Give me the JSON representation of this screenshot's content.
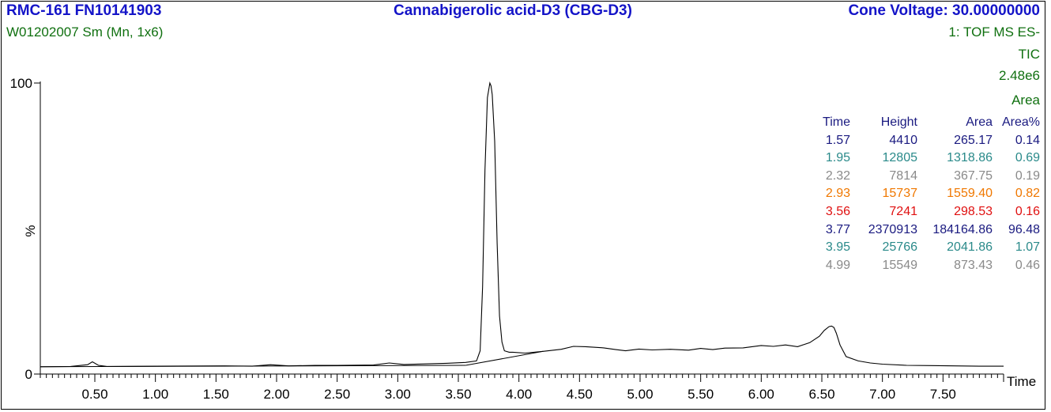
{
  "header": {
    "title_left": "RMC-161 FN10141903",
    "title_center": "Cannabigerolic acid-D3 (CBG-D3)",
    "title_right": "Cone Voltage: 30.00000000",
    "subtitle": "W01202007 Sm (Mn, 1x6)",
    "info_lines": [
      "1: TOF MS ES-",
      "TIC",
      "2.48e6",
      "Area"
    ]
  },
  "colors": {
    "title": "#1414c8",
    "info": "#107010",
    "trace": "#000000"
  },
  "peak_table": {
    "columns": [
      "Time",
      "Height",
      "Area",
      "Area%"
    ],
    "rows": [
      {
        "time": "1.57",
        "height": "4410",
        "area": "265.17",
        "pct": "0.14",
        "color": "#1a1a80"
      },
      {
        "time": "1.95",
        "height": "12805",
        "area": "1318.86",
        "pct": "0.69",
        "color": "#2a8a8a"
      },
      {
        "time": "2.32",
        "height": "7814",
        "area": "367.75",
        "pct": "0.19",
        "color": "#8a8a8a"
      },
      {
        "time": "2.93",
        "height": "15737",
        "area": "1559.40",
        "pct": "0.82",
        "color": "#f07800"
      },
      {
        "time": "3.56",
        "height": "7241",
        "area": "298.53",
        "pct": "0.16",
        "color": "#e01010"
      },
      {
        "time": "3.77",
        "height": "2370913",
        "area": "184164.86",
        "pct": "96.48",
        "color": "#1a1a80"
      },
      {
        "time": "3.95",
        "height": "25766",
        "area": "2041.86",
        "pct": "1.07",
        "color": "#2a8a8a"
      },
      {
        "time": "4.99",
        "height": "15549",
        "area": "873.43",
        "pct": "0.46",
        "color": "#8a8a8a"
      }
    ]
  },
  "chart_data": {
    "type": "line",
    "xlabel": "Time",
    "ylabel": "%",
    "xlim": [
      0.05,
      8.0
    ],
    "ylim": [
      0,
      100
    ],
    "x_ticks": [
      "0.50",
      "1.00",
      "1.50",
      "2.00",
      "2.50",
      "3.00",
      "3.50",
      "4.00",
      "4.50",
      "5.00",
      "5.50",
      "6.00",
      "6.50",
      "7.00",
      "7.50"
    ],
    "y_ticks": [
      "0",
      "100"
    ],
    "series": [
      {
        "x": [
          0.05,
          0.3,
          0.44,
          0.48,
          0.53,
          0.6,
          1.0,
          1.57,
          1.8,
          1.95,
          2.1,
          2.32,
          2.5,
          2.8,
          2.93,
          3.05,
          3.4,
          3.56,
          3.65,
          3.68,
          3.7,
          3.72,
          3.74,
          3.76,
          3.77,
          3.78,
          3.8,
          3.82,
          3.84,
          3.86,
          3.88,
          3.92,
          3.95,
          4.05,
          4.2,
          4.35,
          4.45,
          4.55,
          4.7,
          4.8,
          4.88,
          4.99,
          5.1,
          5.25,
          5.4,
          5.5,
          5.6,
          5.7,
          5.85,
          6.0,
          6.1,
          6.2,
          6.3,
          6.4,
          6.48,
          6.52,
          6.56,
          6.58,
          6.6,
          6.62,
          6.65,
          6.7,
          6.8,
          6.9,
          7.0,
          7.2,
          7.4,
          7.6,
          7.8,
          8.0
        ],
        "y": [
          2.5,
          2.6,
          3.2,
          4.2,
          3.0,
          2.6,
          2.7,
          2.8,
          2.7,
          3.2,
          2.8,
          3.0,
          3.0,
          3.1,
          3.8,
          3.3,
          3.7,
          4.0,
          4.5,
          8,
          30,
          70,
          95,
          100,
          99,
          96,
          80,
          45,
          20,
          11,
          8,
          7.5,
          7.5,
          7.2,
          7.8,
          8.5,
          9.5,
          9.4,
          9.0,
          8.4,
          8.0,
          8.6,
          8.3,
          8.5,
          8.2,
          8.8,
          8.4,
          8.9,
          9.0,
          9.8,
          9.5,
          10.0,
          9.4,
          10.8,
          13.0,
          15.0,
          16.3,
          16.5,
          16.0,
          14.0,
          10.0,
          6.0,
          4.5,
          3.8,
          3.4,
          3.0,
          2.9,
          2.8,
          2.7,
          2.7
        ]
      }
    ],
    "baselines": [
      {
        "x": [
          0.05,
          3.56
        ],
        "y": [
          2.5,
          3.0
        ]
      },
      {
        "x": [
          3.56,
          4.2
        ],
        "y": [
          3.0,
          7.8
        ]
      }
    ]
  }
}
